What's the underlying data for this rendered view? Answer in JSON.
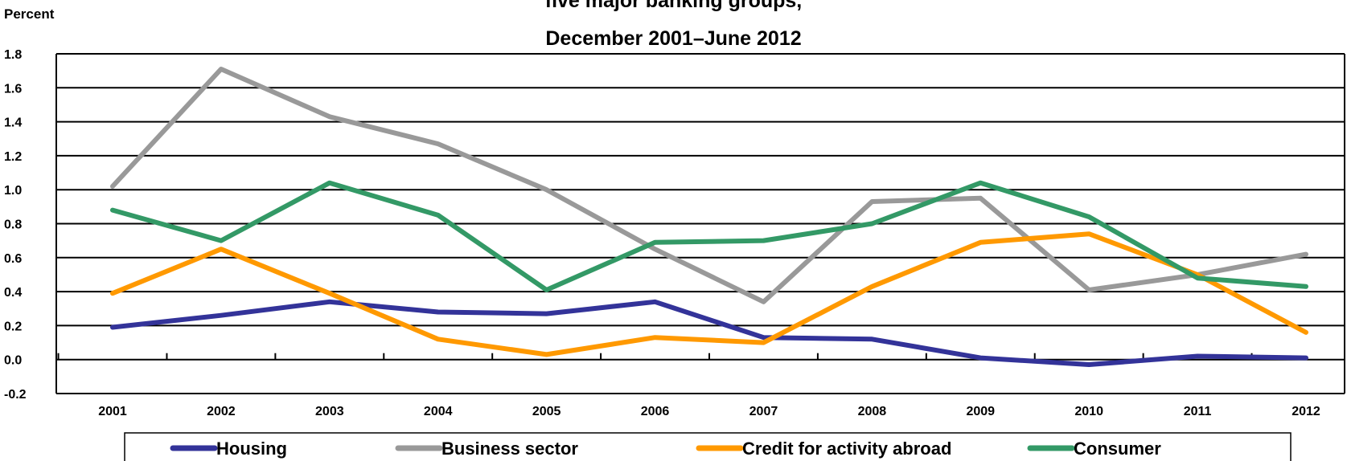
{
  "chart_data": {
    "type": "line",
    "title_line1": "five major banking groups,",
    "title_line2": "December 2001–June 2012",
    "ylabel": "Percent",
    "xlabel": "",
    "ylim": [
      -0.2,
      1.8
    ],
    "yticks": [
      "-0.2",
      "0.0",
      "0.2",
      "0.4",
      "0.6",
      "0.8",
      "1.0",
      "1.2",
      "1.4",
      "1.6",
      "1.8"
    ],
    "categories": [
      "2001",
      "2002",
      "2003",
      "2004",
      "2005",
      "2006",
      "2007",
      "2008",
      "2009",
      "2010",
      "2011",
      "2012"
    ],
    "grid": true,
    "legend_position": "bottom",
    "series": [
      {
        "name": "Housing",
        "color": "#333399",
        "values": [
          0.19,
          0.26,
          0.34,
          0.28,
          0.27,
          0.34,
          0.13,
          0.12,
          0.01,
          -0.03,
          0.02,
          0.01
        ]
      },
      {
        "name": "Business sector",
        "color": "#999999",
        "values": [
          1.02,
          1.71,
          1.43,
          1.27,
          1.0,
          0.65,
          0.34,
          0.93,
          0.95,
          0.41,
          0.5,
          0.62
        ]
      },
      {
        "name": "Credit for activity abroad",
        "color": "#FF9900",
        "values": [
          0.39,
          0.65,
          0.39,
          0.12,
          0.03,
          0.13,
          0.1,
          0.43,
          0.69,
          0.74,
          0.5,
          0.16
        ]
      },
      {
        "name": "Consumer",
        "color": "#339966",
        "values": [
          0.88,
          0.7,
          1.04,
          0.85,
          0.41,
          0.69,
          0.7,
          0.8,
          1.04,
          0.84,
          0.48,
          0.43
        ]
      }
    ]
  }
}
